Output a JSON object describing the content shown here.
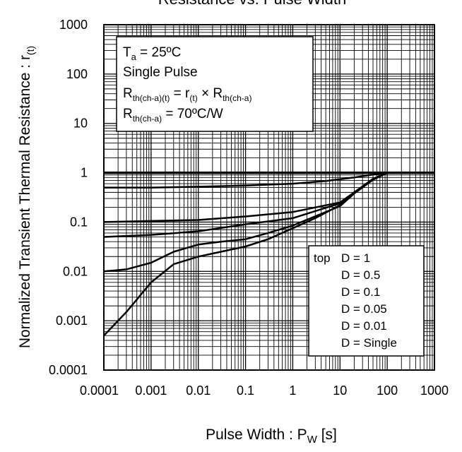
{
  "chart_data": {
    "type": "line",
    "title": "Resistance vs. Pulse Width",
    "xlabel": {
      "main": "Pulse Width : P",
      "sub": "W",
      "tail": " [s]"
    },
    "ylabel": {
      "main": "Normalized Transient Thermal Resistance : r",
      "sub": "(t)"
    },
    "x_scale": "log",
    "y_scale": "log",
    "xlim": [
      0.0001,
      1000
    ],
    "ylim": [
      0.0001,
      1000
    ],
    "x_ticks": [
      "0.0001",
      "0.001",
      "0.01",
      "0.1",
      "1",
      "10",
      "100",
      "1000"
    ],
    "y_ticks": [
      "0.0001",
      "0.001",
      "0.01",
      "0.1",
      "1",
      "10",
      "100",
      "1000"
    ],
    "grid": true,
    "conditions": {
      "line1": {
        "a": "T",
        "a_sub": "a",
        "b": " = 25ºC"
      },
      "line2": "Single Pulse",
      "line3": {
        "a": "R",
        "a_sub": "th(ch-a)(t)",
        "b": " = r",
        "b_sub": "(t)",
        "c": " × R",
        "c_sub": "th(ch-a)"
      },
      "line4": {
        "a": "R",
        "a_sub": "th(ch-a)",
        "b": " = 70ºC/W"
      }
    },
    "legend": {
      "position": "bottom-right",
      "header": "top",
      "entries": [
        "D = 1",
        "D = 0.5",
        "D = 0.1",
        "D = 0.05",
        "D = 0.01",
        "D = Single"
      ]
    },
    "series": [
      {
        "name": "D = 1",
        "x": [
          0.0001,
          1000
        ],
        "y": [
          1,
          1
        ]
      },
      {
        "name": "D = 0.5",
        "x": [
          0.0001,
          0.001,
          0.01,
          0.1,
          1,
          5,
          20,
          60,
          100,
          1000
        ],
        "y": [
          0.5,
          0.5,
          0.52,
          0.55,
          0.6,
          0.68,
          0.8,
          0.94,
          1,
          1
        ]
      },
      {
        "name": "D = 0.1",
        "x": [
          0.0001,
          0.001,
          0.01,
          0.1,
          1,
          10,
          20,
          50,
          100,
          1000
        ],
        "y": [
          0.1,
          0.105,
          0.11,
          0.13,
          0.16,
          0.25,
          0.4,
          0.75,
          1,
          1
        ]
      },
      {
        "name": "D = 0.05",
        "x": [
          0.0001,
          0.001,
          0.01,
          0.1,
          1,
          10,
          20,
          50,
          100,
          1000
        ],
        "y": [
          0.05,
          0.055,
          0.065,
          0.09,
          0.12,
          0.24,
          0.4,
          0.75,
          1,
          1
        ]
      },
      {
        "name": "D = 0.01",
        "x": [
          0.0001,
          0.0003,
          0.001,
          0.003,
          0.01,
          0.03,
          0.1,
          0.3,
          1,
          10,
          20,
          50,
          100,
          1000
        ],
        "y": [
          0.01,
          0.011,
          0.015,
          0.025,
          0.035,
          0.04,
          0.045,
          0.06,
          0.085,
          0.21,
          0.38,
          0.72,
          1,
          1
        ]
      },
      {
        "name": "D = Single",
        "x": [
          0.0001,
          0.0003,
          0.001,
          0.003,
          0.01,
          0.03,
          0.1,
          0.3,
          1,
          3,
          10,
          20,
          50,
          100,
          1000
        ],
        "y": [
          0.0005,
          0.0015,
          0.006,
          0.014,
          0.02,
          0.025,
          0.032,
          0.045,
          0.075,
          0.12,
          0.22,
          0.38,
          0.72,
          1,
          1
        ]
      }
    ]
  }
}
